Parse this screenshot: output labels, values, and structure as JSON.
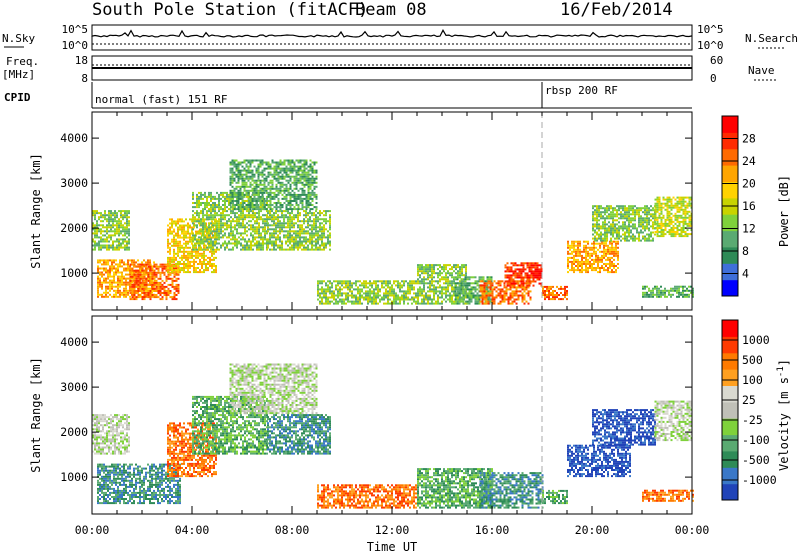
{
  "header": {
    "title": "South Pole Station (fitACF)",
    "beam": "Beam 08",
    "date": "16/Feb/2014"
  },
  "strip_panels": {
    "nsky": {
      "label": "N.Sky",
      "tick_top": "10^5",
      "tick_bottom": "10^0",
      "right_label": "N.Search",
      "right_tick_top": "10^5",
      "right_tick_bottom": "10^0"
    },
    "freq": {
      "label_line1": "Freq.",
      "label_line2": "[MHz]",
      "tick_top": "18",
      "tick_bottom": "8",
      "right_label": "Nave",
      "right_tick_top": "60",
      "right_tick_bottom": "0"
    },
    "cpid": {
      "label": "CPID",
      "mode1": "normal (fast) 151 RF",
      "mode2": "rbsp 200 RF",
      "mode2_start_hour": 18.0
    }
  },
  "colors": {
    "power": [
      "#0000ff",
      "#3f6fd9",
      "#2e8b57",
      "#5aaa72",
      "#7fd13b",
      "#c8d400",
      "#ffd200",
      "#ffa500",
      "#ff6a00",
      "#ff2a00",
      "#ff0000"
    ],
    "velocity": [
      "#2043b8",
      "#3a78c8",
      "#2e8b57",
      "#5aaa72",
      "#7fd13b",
      "#c0c0b8",
      "#d9d9d0",
      "#ffa020",
      "#ff7a00",
      "#ff3a00",
      "#ff0000"
    ]
  },
  "chart_data": [
    {
      "type": "heatmap",
      "name": "power",
      "ylabel": "Slant Range [km]",
      "xlabel": "",
      "colorbar_label": "Power [dB]",
      "colorbar_ticks": [
        "4",
        "8",
        "12",
        "16",
        "20",
        "24",
        "28"
      ],
      "colorbar_range": [
        0,
        32
      ],
      "xlim": [
        0,
        24
      ],
      "ylim": [
        180,
        4580
      ],
      "x_ticks": [
        "00:00",
        "04:00",
        "08:00",
        "12:00",
        "16:00",
        "20:00",
        "00:00"
      ],
      "y_ticks": [
        "1000",
        "2000",
        "3000",
        "4000"
      ],
      "y_tick_values": [
        1000,
        2000,
        3000,
        4000
      ],
      "regions": [
        {
          "t": [
            0.0,
            1.5
          ],
          "r": [
            1500,
            2400
          ],
          "level": 14
        },
        {
          "t": [
            0.2,
            2.5
          ],
          "r": [
            450,
            1300
          ],
          "level": 22
        },
        {
          "t": [
            1.5,
            3.5
          ],
          "r": [
            400,
            1200
          ],
          "level": 26
        },
        {
          "t": [
            3.0,
            5.0
          ],
          "r": [
            1000,
            2200
          ],
          "level": 20
        },
        {
          "t": [
            4.0,
            7.0
          ],
          "r": [
            1500,
            2800
          ],
          "level": 14
        },
        {
          "t": [
            5.5,
            9.0
          ],
          "r": [
            2400,
            3500
          ],
          "level": 8
        },
        {
          "t": [
            7.0,
            9.5
          ],
          "r": [
            1500,
            2400
          ],
          "level": 13
        },
        {
          "t": [
            9.0,
            13.0
          ],
          "r": [
            300,
            800
          ],
          "level": 14
        },
        {
          "t": [
            13.0,
            15.0
          ],
          "r": [
            300,
            1200
          ],
          "level": 12
        },
        {
          "t": [
            14.5,
            16.0
          ],
          "r": [
            300,
            900
          ],
          "level": 10
        },
        {
          "t": [
            15.5,
            17.5
          ],
          "r": [
            300,
            800
          ],
          "level": 24
        },
        {
          "t": [
            16.5,
            18.0
          ],
          "r": [
            700,
            1200
          ],
          "level": 28
        },
        {
          "t": [
            18.0,
            19.0
          ],
          "r": [
            400,
            700
          ],
          "level": 24
        },
        {
          "t": [
            19.0,
            21.0
          ],
          "r": [
            1000,
            1700
          ],
          "level": 22
        },
        {
          "t": [
            20.0,
            22.5
          ],
          "r": [
            1700,
            2500
          ],
          "level": 14
        },
        {
          "t": [
            22.5,
            24.0
          ],
          "r": [
            1800,
            2700
          ],
          "level": 17
        },
        {
          "t": [
            22.0,
            24.0
          ],
          "r": [
            450,
            700
          ],
          "level": 10
        }
      ]
    },
    {
      "type": "heatmap",
      "name": "velocity",
      "ylabel": "Slant Range [km]",
      "xlabel": "Time UT",
      "colorbar_label": "Velocity [m s-1]",
      "colorbar_label_main": "Velocity [m s",
      "colorbar_label_sup": "-1",
      "colorbar_label_end": "]",
      "colorbar_ticks": [
        "-1000",
        "-500",
        "-100",
        "-25",
        "25",
        "100",
        "500",
        "1000"
      ],
      "xlim": [
        0,
        24
      ],
      "ylim": [
        180,
        4580
      ],
      "x_ticks": [
        "00:00",
        "04:00",
        "08:00",
        "12:00",
        "16:00",
        "20:00",
        "00:00"
      ],
      "y_ticks": [
        "1000",
        "2000",
        "3000",
        "4000"
      ],
      "y_tick_values": [
        1000,
        2000,
        3000,
        4000
      ],
      "regions": [
        {
          "t": [
            0.0,
            1.5
          ],
          "r": [
            1500,
            2400
          ],
          "level": 5
        },
        {
          "t": [
            0.2,
            3.5
          ],
          "r": [
            400,
            1300
          ],
          "level": 2
        },
        {
          "t": [
            3.0,
            5.0
          ],
          "r": [
            1000,
            2200
          ],
          "level": 8
        },
        {
          "t": [
            4.0,
            7.0
          ],
          "r": [
            1500,
            2800
          ],
          "level": 3
        },
        {
          "t": [
            5.5,
            9.0
          ],
          "r": [
            2400,
            3500
          ],
          "level": 5
        },
        {
          "t": [
            7.0,
            9.5
          ],
          "r": [
            1500,
            2400
          ],
          "level": 2
        },
        {
          "t": [
            9.0,
            13.0
          ],
          "r": [
            300,
            800
          ],
          "level": 8
        },
        {
          "t": [
            13.0,
            16.0
          ],
          "r": [
            300,
            1200
          ],
          "level": 3
        },
        {
          "t": [
            15.5,
            18.0
          ],
          "r": [
            300,
            1100
          ],
          "level": 2
        },
        {
          "t": [
            18.0,
            19.0
          ],
          "r": [
            400,
            700
          ],
          "level": 3
        },
        {
          "t": [
            19.0,
            21.5
          ],
          "r": [
            1000,
            1700
          ],
          "level": 0
        },
        {
          "t": [
            20.0,
            22.5
          ],
          "r": [
            1700,
            2500
          ],
          "level": 0
        },
        {
          "t": [
            22.5,
            24.0
          ],
          "r": [
            1800,
            2700
          ],
          "level": 5
        },
        {
          "t": [
            22.0,
            24.0
          ],
          "r": [
            450,
            700
          ],
          "level": 8
        }
      ]
    }
  ]
}
